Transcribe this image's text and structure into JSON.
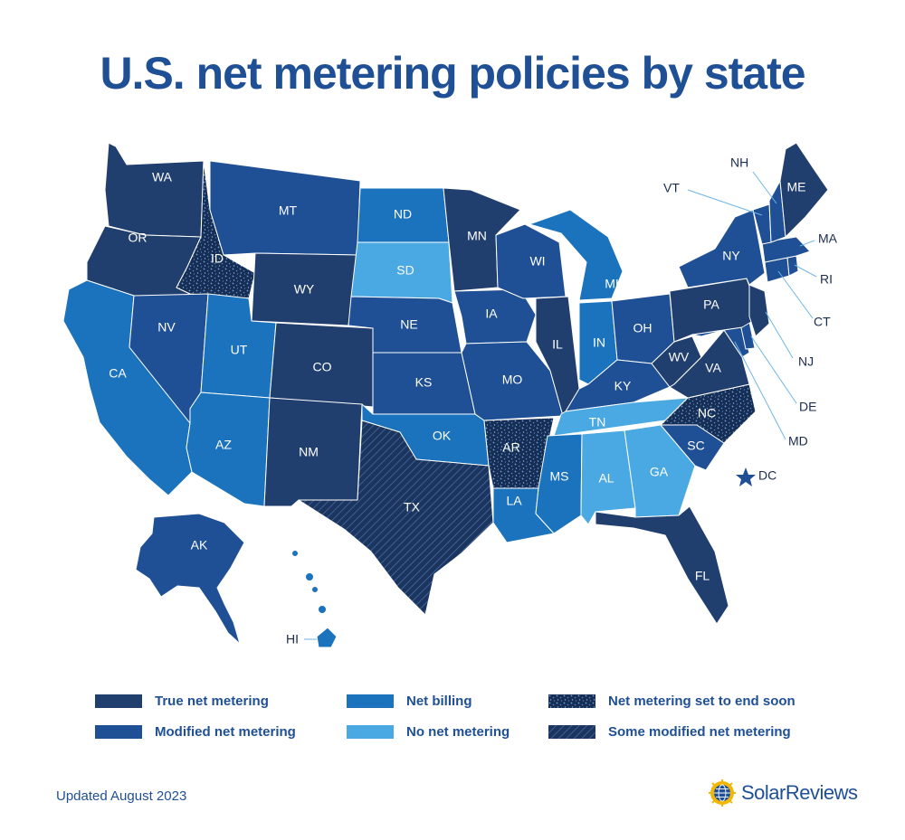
{
  "title": "U.S. net metering policies by state",
  "colors": {
    "true_net_metering": "#213f6e",
    "modified_net_metering": "#1f4f95",
    "net_billing": "#1a73bc",
    "no_net_metering": "#4aa8e2",
    "ending_soon_base": "#172f55",
    "some_modified_base": "#1c355f",
    "outline": "#ffffff",
    "title": "#1f4f95"
  },
  "map": {
    "state_labels": [
      {
        "abbr": "WA",
        "policy": "true_net_metering"
      },
      {
        "abbr": "OR",
        "policy": "true_net_metering"
      },
      {
        "abbr": "CA",
        "policy": "net_billing"
      },
      {
        "abbr": "ID",
        "policy": "ending_soon"
      },
      {
        "abbr": "NV",
        "policy": "modified_net_metering"
      },
      {
        "abbr": "MT",
        "policy": "modified_net_metering"
      },
      {
        "abbr": "WY",
        "policy": "true_net_metering"
      },
      {
        "abbr": "UT",
        "policy": "net_billing"
      },
      {
        "abbr": "AZ",
        "policy": "net_billing"
      },
      {
        "abbr": "CO",
        "policy": "true_net_metering"
      },
      {
        "abbr": "NM",
        "policy": "true_net_metering"
      },
      {
        "abbr": "ND",
        "policy": "net_billing"
      },
      {
        "abbr": "SD",
        "policy": "no_net_metering"
      },
      {
        "abbr": "NE",
        "policy": "modified_net_metering"
      },
      {
        "abbr": "KS",
        "policy": "modified_net_metering"
      },
      {
        "abbr": "OK",
        "policy": "net_billing"
      },
      {
        "abbr": "TX",
        "policy": "some_modified"
      },
      {
        "abbr": "MN",
        "policy": "true_net_metering"
      },
      {
        "abbr": "IA",
        "policy": "modified_net_metering"
      },
      {
        "abbr": "MO",
        "policy": "modified_net_metering"
      },
      {
        "abbr": "AR",
        "policy": "ending_soon"
      },
      {
        "abbr": "LA",
        "policy": "net_billing"
      },
      {
        "abbr": "WI",
        "policy": "modified_net_metering"
      },
      {
        "abbr": "IL",
        "policy": "true_net_metering"
      },
      {
        "abbr": "MI",
        "policy": "net_billing"
      },
      {
        "abbr": "IN",
        "policy": "net_billing"
      },
      {
        "abbr": "OH",
        "policy": "modified_net_metering"
      },
      {
        "abbr": "KY",
        "policy": "modified_net_metering"
      },
      {
        "abbr": "TN",
        "policy": "no_net_metering"
      },
      {
        "abbr": "MS",
        "policy": "net_billing"
      },
      {
        "abbr": "AL",
        "policy": "no_net_metering"
      },
      {
        "abbr": "GA",
        "policy": "no_net_metering"
      },
      {
        "abbr": "FL",
        "policy": "true_net_metering"
      },
      {
        "abbr": "SC",
        "policy": "modified_net_metering"
      },
      {
        "abbr": "NC",
        "policy": "ending_soon"
      },
      {
        "abbr": "VA",
        "policy": "true_net_metering"
      },
      {
        "abbr": "WV",
        "policy": "true_net_metering"
      },
      {
        "abbr": "PA",
        "policy": "true_net_metering"
      },
      {
        "abbr": "NY",
        "policy": "modified_net_metering"
      },
      {
        "abbr": "ME",
        "policy": "true_net_metering"
      },
      {
        "abbr": "AK",
        "policy": "modified_net_metering"
      }
    ],
    "callout_labels": [
      "NH",
      "VT",
      "MA",
      "RI",
      "CT",
      "NJ",
      "DE",
      "MD",
      "DC",
      "HI"
    ]
  },
  "legend": [
    {
      "label": "True net metering",
      "key": "true_net_metering",
      "pattern": "solid"
    },
    {
      "label": "Net billing",
      "key": "net_billing",
      "pattern": "solid"
    },
    {
      "label": "Net metering set to end soon",
      "key": "ending_soon",
      "pattern": "speckle"
    },
    {
      "label": "Modified net metering",
      "key": "modified_net_metering",
      "pattern": "solid"
    },
    {
      "label": "No net metering",
      "key": "no_net_metering",
      "pattern": "solid"
    },
    {
      "label": "Some modified net metering",
      "key": "some_modified",
      "pattern": "hatch"
    }
  ],
  "footer": {
    "updated": "Updated August 2023",
    "brand": "SolarReviews",
    "brand_icon": "sun-globe-icon"
  }
}
